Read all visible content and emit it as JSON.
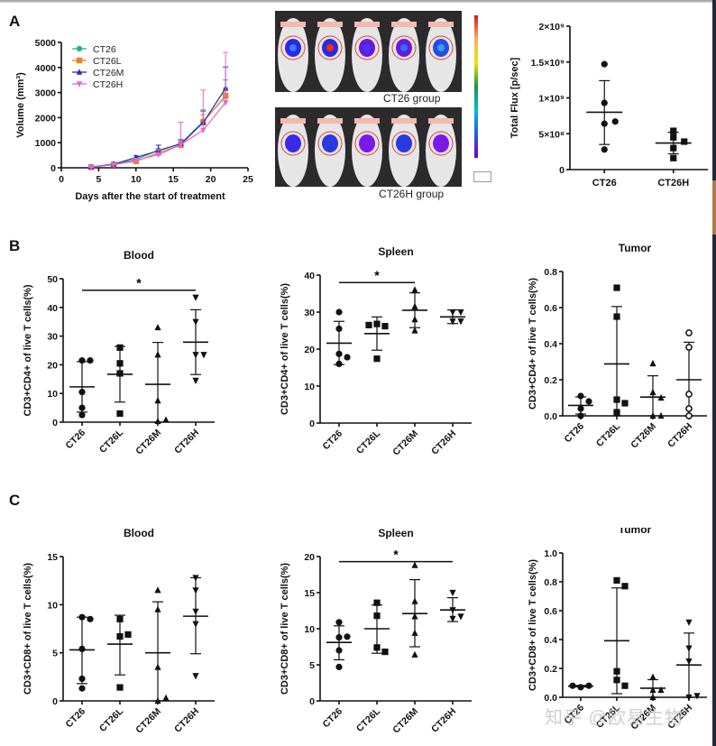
{
  "panels": {
    "A": "A",
    "B": "B",
    "C": "C"
  },
  "imaging": {
    "top_caption": "CT26 group",
    "bottom_caption": "CT26H group",
    "colorbar_colors": [
      "#d7191c",
      "#fdae61",
      "#e6e600",
      "#1a9641",
      "#00bcd4",
      "#2b5cd6",
      "#6a00d8"
    ]
  },
  "watermark": "知乎 @欧易生物",
  "chart_data": [
    {
      "id": "growth",
      "type": "line",
      "title": "",
      "xlabel": "Days after the start of treatment",
      "ylabel": "Volume (mm³)",
      "xlim": [
        0,
        25
      ],
      "ylim": [
        0,
        5000
      ],
      "xticks": [
        0,
        5,
        10,
        15,
        20,
        25
      ],
      "yticks": [
        0,
        1000,
        2000,
        3000,
        4000,
        5000
      ],
      "x": [
        4,
        7,
        10,
        13,
        16,
        19,
        22
      ],
      "legend_position": "top-left",
      "series": [
        {
          "name": "CT26",
          "color": "#1fb88a",
          "marker": "circle",
          "values": [
            30,
            150,
            330,
            700,
            950,
            1850,
            2850
          ],
          "err": [
            20,
            40,
            60,
            200,
            180,
            400,
            650
          ]
        },
        {
          "name": "CT26L",
          "color": "#f07c2a",
          "marker": "square",
          "values": [
            25,
            130,
            260,
            600,
            900,
            1820,
            2880
          ],
          "err": [
            15,
            30,
            50,
            150,
            150,
            300,
            300
          ]
        },
        {
          "name": "CT26M",
          "color": "#1f2fb5",
          "marker": "triangle-up",
          "values": [
            30,
            140,
            410,
            680,
            960,
            1800,
            3170
          ],
          "err": [
            15,
            40,
            70,
            220,
            150,
            500,
            850
          ]
        },
        {
          "name": "CT26H",
          "color": "#e565d6",
          "marker": "triangle-down",
          "values": [
            20,
            120,
            300,
            520,
            920,
            1500,
            2600
          ],
          "err": [
            10,
            30,
            60,
            200,
            900,
            1600,
            2000
          ]
        }
      ]
    },
    {
      "id": "flux",
      "type": "scatter",
      "title": "",
      "xlabel": "",
      "ylabel": "Total Flux [p/sec]",
      "ylim": [
        0,
        2000000000
      ],
      "ytick_labels": [
        "0",
        "5×10⁸",
        "1×10⁹",
        "1.5×10⁹",
        "2×10⁹"
      ],
      "yticks": [
        0,
        500000000,
        1000000000,
        1500000000,
        2000000000
      ],
      "categories": [
        "CT26",
        "CT26H"
      ],
      "groups": [
        {
          "name": "CT26",
          "marker": "circle",
          "points": [
            1470000000,
            930000000,
            640000000,
            670000000,
            280000000
          ],
          "mean": 800000000,
          "sd_low": 350000000,
          "sd_high": 1240000000
        },
        {
          "name": "CT26H",
          "marker": "square",
          "points": [
            540000000,
            450000000,
            390000000,
            300000000,
            160000000
          ],
          "mean": 370000000,
          "sd_low": 220000000,
          "sd_high": 520000000
        }
      ]
    },
    {
      "id": "cd4-blood",
      "type": "scatter",
      "title": "Blood",
      "ylabel": "CD3+CD4+ of live T cells(%)",
      "ylim": [
        0,
        50
      ],
      "yticks": [
        0,
        10,
        20,
        30,
        40,
        50
      ],
      "categories": [
        "CT26",
        "CT26L",
        "CT26M",
        "CT26H"
      ],
      "significance": {
        "from": 0,
        "to": 3,
        "label": "*",
        "y": 46
      },
      "groups": [
        {
          "name": "CT26",
          "marker": "circle",
          "points": [
            21.5,
            21.5,
            10.5,
            5.0,
            2.5
          ],
          "mean": 12.3,
          "sd_low": 3.5,
          "sd_high": 21.1
        },
        {
          "name": "CT26L",
          "marker": "square",
          "points": [
            26.0,
            20.5,
            17.0,
            3.0
          ],
          "mean": 16.7,
          "sd_low": 7.0,
          "sd_high": 26.4
        },
        {
          "name": "CT26M",
          "marker": "triangle-up",
          "points": [
            33.0,
            23.5,
            7.5,
            0.3,
            0.8
          ],
          "mean": 13.2,
          "sd_low": 0,
          "sd_high": 27.8
        },
        {
          "name": "CT26H",
          "marker": "triangle-down",
          "points": [
            43.5,
            35.0,
            23.5,
            23.5,
            14.5
          ],
          "mean": 27.9,
          "sd_low": 16.6,
          "sd_high": 39.2
        }
      ]
    },
    {
      "id": "cd4-spleen",
      "type": "scatter",
      "title": "Spleen",
      "ylabel": "CD3+CD4+ of live T cells(%)",
      "ylim": [
        0,
        40
      ],
      "yticks": [
        0,
        10,
        20,
        30,
        40
      ],
      "categories": [
        "CT26",
        "CT26L",
        "CT26M",
        "CT26H"
      ],
      "significance": {
        "from": 0,
        "to": 2,
        "label": "*",
        "y": 38
      },
      "groups": [
        {
          "name": "CT26",
          "marker": "circle",
          "points": [
            30.0,
            25.5,
            18.7,
            17.8,
            16.0
          ],
          "mean": 21.6,
          "sd_low": 15.8,
          "sd_high": 27.5
        },
        {
          "name": "CT26L",
          "marker": "square",
          "points": [
            26.8,
            26.2,
            26.5,
            17.4
          ],
          "mean": 24.2,
          "sd_low": 19.7,
          "sd_high": 28.7
        },
        {
          "name": "CT26M",
          "marker": "triangle-up",
          "points": [
            36.0,
            31.5,
            28.0,
            25.0
          ],
          "mean": 30.5,
          "sd_low": 25.8,
          "sd_high": 35.2
        },
        {
          "name": "CT26H",
          "marker": "triangle-down",
          "points": [
            30.0,
            30.0,
            27.5,
            27.5
          ],
          "mean": 28.7,
          "sd_low": 26.9,
          "sd_high": 30.6
        }
      ]
    },
    {
      "id": "cd4-tumor",
      "type": "scatter",
      "title": "Tumor",
      "ylabel": "CD3+CD4+ of live T cells(%)",
      "ylim": [
        0,
        0.8
      ],
      "yticks": [
        0.0,
        0.2,
        0.4,
        0.6,
        0.8
      ],
      "ytick_labels": [
        "0.0",
        "0.2",
        "0.4",
        "0.6",
        "0.8"
      ],
      "categories": [
        "CT26",
        "CT26L",
        "CT26M",
        "CT26H"
      ],
      "groups": [
        {
          "name": "CT26",
          "marker": "circle",
          "points": [
            0.11,
            0.08,
            0.04,
            0.0
          ],
          "mean": 0.058,
          "sd_low": 0.01,
          "sd_high": 0.105
        },
        {
          "name": "CT26L",
          "marker": "square",
          "points": [
            0.71,
            0.55,
            0.09,
            0.07,
            0.02
          ],
          "mean": 0.288,
          "sd_low": 0.0,
          "sd_high": 0.606
        },
        {
          "name": "CT26M",
          "marker": "triangle-up",
          "points": [
            0.29,
            0.13,
            0.1,
            0.0,
            0.0
          ],
          "mean": 0.104,
          "sd_low": 0.0,
          "sd_high": 0.222
        },
        {
          "name": "CT26H",
          "marker": "open-circle",
          "points": [
            0.46,
            0.38,
            0.12,
            0.04,
            0.0
          ],
          "mean": 0.2,
          "sd_low": 0.0,
          "sd_high": 0.408
        }
      ]
    },
    {
      "id": "cd8-blood",
      "type": "scatter",
      "title": "Blood",
      "ylabel": "CD3+CD8+ of live T cells(%)",
      "ylim": [
        0,
        15
      ],
      "yticks": [
        0,
        5,
        10,
        15
      ],
      "categories": [
        "CT26",
        "CT26L",
        "CT26M",
        "CT26H"
      ],
      "groups": [
        {
          "name": "CT26",
          "marker": "circle",
          "points": [
            8.7,
            8.5,
            5.4,
            2.3,
            1.3
          ],
          "mean": 5.3,
          "sd_low": 1.8,
          "sd_high": 8.7
        },
        {
          "name": "CT26L",
          "marker": "square",
          "points": [
            8.5,
            6.7,
            6.9,
            1.4
          ],
          "mean": 5.9,
          "sd_low": 2.7,
          "sd_high": 8.9
        },
        {
          "name": "CT26M",
          "marker": "triangle-up",
          "points": [
            11.5,
            9.5,
            3.5,
            0.0,
            0.3
          ],
          "mean": 5.0,
          "sd_low": 0.0,
          "sd_high": 10.3
        },
        {
          "name": "CT26H",
          "marker": "triangle-down",
          "points": [
            12.8,
            11.5,
            9.3,
            8.0,
            2.6
          ],
          "mean": 8.8,
          "sd_low": 4.9,
          "sd_high": 12.8
        }
      ]
    },
    {
      "id": "cd8-spleen",
      "type": "scatter",
      "title": "Spleen",
      "ylabel": "CD3+CD8+ of live T cells(%)",
      "ylim": [
        0,
        20
      ],
      "yticks": [
        0,
        5,
        10,
        15,
        20
      ],
      "categories": [
        "CT26",
        "CT26L",
        "CT26M",
        "CT26H"
      ],
      "significance": {
        "from": 0,
        "to": 3,
        "label": "*",
        "y": 19.3
      },
      "groups": [
        {
          "name": "CT26",
          "marker": "circle",
          "points": [
            10.9,
            8.8,
            8.9,
            7.0,
            4.7
          ],
          "mean": 8.1,
          "sd_low": 5.7,
          "sd_high": 10.4
        },
        {
          "name": "CT26L",
          "marker": "square",
          "points": [
            13.6,
            11.8,
            7.4,
            6.8
          ],
          "mean": 10.0,
          "sd_low": 6.6,
          "sd_high": 13.3
        },
        {
          "name": "CT26M",
          "marker": "triangle-up",
          "points": [
            18.8,
            13.8,
            11.7,
            9.4,
            6.4
          ],
          "mean": 12.1,
          "sd_low": 7.5,
          "sd_high": 16.8
        },
        {
          "name": "CT26H",
          "marker": "triangle-down",
          "points": [
            15.0,
            12.6,
            11.4,
            11.7
          ],
          "mean": 12.6,
          "sd_low": 11.0,
          "sd_high": 14.3
        }
      ]
    },
    {
      "id": "cd8-tumor",
      "type": "scatter",
      "title": "Tumor",
      "ylabel": "CD3+CD8+ of live T cells(%)",
      "ylim": [
        0,
        1.0
      ],
      "yticks": [
        0.0,
        0.2,
        0.4,
        0.6,
        0.8,
        1.0
      ],
      "ytick_labels": [
        "0.0",
        "0.2",
        "0.4",
        "0.6",
        "0.8",
        "1.0"
      ],
      "categories": [
        "CT26",
        "CT26L",
        "CT26M",
        "CT26H"
      ],
      "groups": [
        {
          "name": "CT26",
          "marker": "circle",
          "points": [
            0.07,
            0.08,
            0.08
          ],
          "mean": 0.077,
          "sd_low": 0.072,
          "sd_high": 0.082
        },
        {
          "name": "CT26L",
          "marker": "square",
          "points": [
            0.81,
            0.77,
            0.18,
            0.12,
            0.08
          ],
          "mean": 0.392,
          "sd_low": 0.025,
          "sd_high": 0.758
        },
        {
          "name": "CT26M",
          "marker": "triangle-up",
          "points": [
            0.14,
            0.05,
            0.05,
            0.0
          ],
          "mean": 0.063,
          "sd_low": 0.0,
          "sd_high": 0.122
        },
        {
          "name": "CT26H",
          "marker": "triangle-down",
          "points": [
            0.52,
            0.34,
            0.25,
            0.0,
            0.01
          ],
          "mean": 0.224,
          "sd_low": 0.0,
          "sd_high": 0.445
        }
      ]
    }
  ]
}
